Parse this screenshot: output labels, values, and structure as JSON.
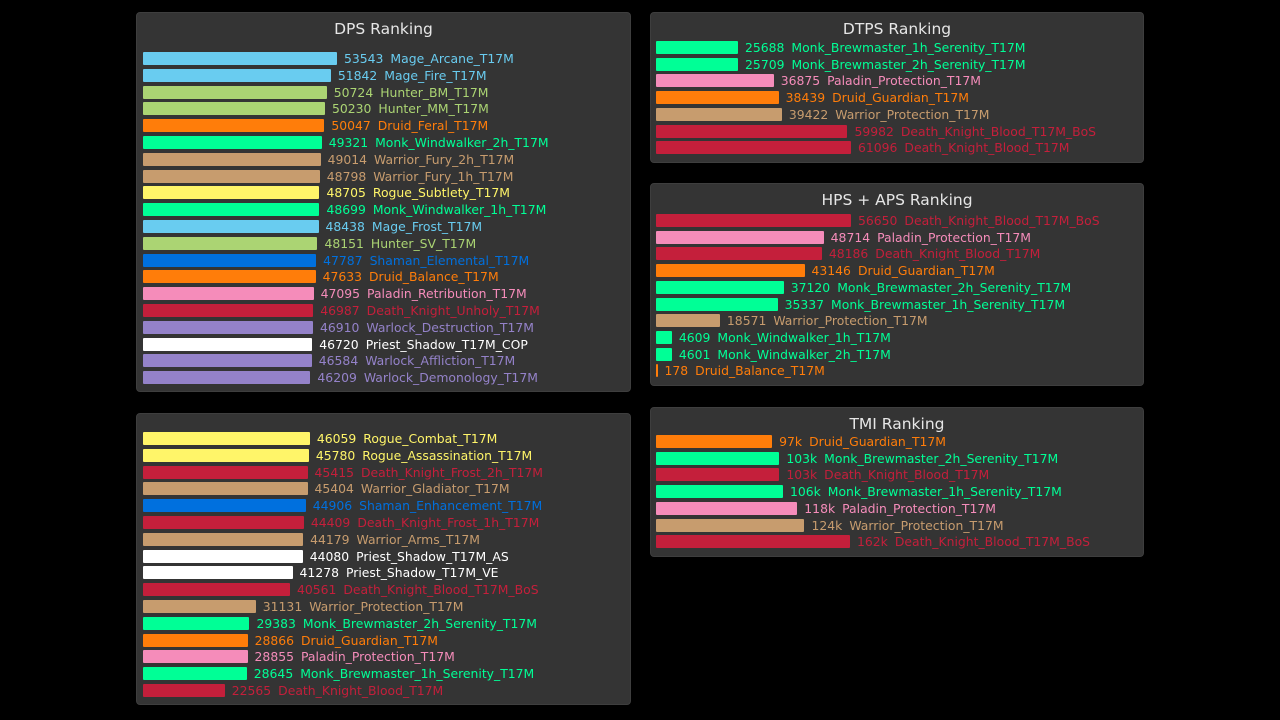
{
  "colors": {
    "Mage": "#69ccf0",
    "Hunter": "#abd473",
    "Druid": "#ff7d0a",
    "Monk": "#00ff96",
    "Warrior": "#c79c6e",
    "Rogue": "#fff569",
    "Shaman": "#0070de",
    "Paladin": "#f58cba",
    "Death Knight": "#c41f3b",
    "Warlock": "#9482c9",
    "Priest": "#ffffff"
  },
  "chart_data": [
    {
      "id": "dps1",
      "type": "bar",
      "orientation": "horizontal",
      "title": "DPS Ranking",
      "max": 53543,
      "items": [
        {
          "value": 53543,
          "label": "53543",
          "name": "Mage_Arcane_T17M",
          "cls": "Mage"
        },
        {
          "value": 51842,
          "label": "51842",
          "name": "Mage_Fire_T17M",
          "cls": "Mage"
        },
        {
          "value": 50724,
          "label": "50724",
          "name": "Hunter_BM_T17M",
          "cls": "Hunter"
        },
        {
          "value": 50230,
          "label": "50230",
          "name": "Hunter_MM_T17M",
          "cls": "Hunter"
        },
        {
          "value": 50047,
          "label": "50047",
          "name": "Druid_Feral_T17M",
          "cls": "Druid"
        },
        {
          "value": 49321,
          "label": "49321",
          "name": "Monk_Windwalker_2h_T17M",
          "cls": "Monk"
        },
        {
          "value": 49014,
          "label": "49014",
          "name": "Warrior_Fury_2h_T17M",
          "cls": "Warrior"
        },
        {
          "value": 48798,
          "label": "48798",
          "name": "Warrior_Fury_1h_T17M",
          "cls": "Warrior"
        },
        {
          "value": 48705,
          "label": "48705",
          "name": "Rogue_Subtlety_T17M",
          "cls": "Rogue"
        },
        {
          "value": 48699,
          "label": "48699",
          "name": "Monk_Windwalker_1h_T17M",
          "cls": "Monk"
        },
        {
          "value": 48438,
          "label": "48438",
          "name": "Mage_Frost_T17M",
          "cls": "Mage"
        },
        {
          "value": 48151,
          "label": "48151",
          "name": "Hunter_SV_T17M",
          "cls": "Hunter"
        },
        {
          "value": 47787,
          "label": "47787",
          "name": "Shaman_Elemental_T17M",
          "cls": "Shaman"
        },
        {
          "value": 47633,
          "label": "47633",
          "name": "Druid_Balance_T17M",
          "cls": "Druid"
        },
        {
          "value": 47095,
          "label": "47095",
          "name": "Paladin_Retribution_T17M",
          "cls": "Paladin"
        },
        {
          "value": 46987,
          "label": "46987",
          "name": "Death_Knight_Unholy_T17M",
          "cls": "Death Knight"
        },
        {
          "value": 46910,
          "label": "46910",
          "name": "Warlock_Destruction_T17M",
          "cls": "Warlock"
        },
        {
          "value": 46720,
          "label": "46720",
          "name": "Priest_Shadow_T17M_COP",
          "cls": "Priest"
        },
        {
          "value": 46584,
          "label": "46584",
          "name": "Warlock_Affliction_T17M",
          "cls": "Warlock"
        },
        {
          "value": 46209,
          "label": "46209",
          "name": "Warlock_Demonology_T17M",
          "cls": "Warlock"
        }
      ]
    },
    {
      "id": "dps2",
      "type": "bar",
      "orientation": "horizontal",
      "title": "",
      "max": 53543,
      "items": [
        {
          "value": 46059,
          "label": "46059",
          "name": "Rogue_Combat_T17M",
          "cls": "Rogue"
        },
        {
          "value": 45780,
          "label": "45780",
          "name": "Rogue_Assassination_T17M",
          "cls": "Rogue"
        },
        {
          "value": 45415,
          "label": "45415",
          "name": "Death_Knight_Frost_2h_T17M",
          "cls": "Death Knight"
        },
        {
          "value": 45404,
          "label": "45404",
          "name": "Warrior_Gladiator_T17M",
          "cls": "Warrior"
        },
        {
          "value": 44906,
          "label": "44906",
          "name": "Shaman_Enhancement_T17M",
          "cls": "Shaman"
        },
        {
          "value": 44409,
          "label": "44409",
          "name": "Death_Knight_Frost_1h_T17M",
          "cls": "Death Knight"
        },
        {
          "value": 44179,
          "label": "44179",
          "name": "Warrior_Arms_T17M",
          "cls": "Warrior"
        },
        {
          "value": 44080,
          "label": "44080",
          "name": "Priest_Shadow_T17M_AS",
          "cls": "Priest"
        },
        {
          "value": 41278,
          "label": "41278",
          "name": "Priest_Shadow_T17M_VE",
          "cls": "Priest"
        },
        {
          "value": 40561,
          "label": "40561",
          "name": "Death_Knight_Blood_T17M_BoS",
          "cls": "Death Knight"
        },
        {
          "value": 31131,
          "label": "31131",
          "name": "Warrior_Protection_T17M",
          "cls": "Warrior"
        },
        {
          "value": 29383,
          "label": "29383",
          "name": "Monk_Brewmaster_2h_Serenity_T17M",
          "cls": "Monk"
        },
        {
          "value": 28866,
          "label": "28866",
          "name": "Druid_Guardian_T17M",
          "cls": "Druid"
        },
        {
          "value": 28855,
          "label": "28855",
          "name": "Paladin_Protection_T17M",
          "cls": "Paladin"
        },
        {
          "value": 28645,
          "label": "28645",
          "name": "Monk_Brewmaster_1h_Serenity_T17M",
          "cls": "Monk"
        },
        {
          "value": 22565,
          "label": "22565",
          "name": "Death_Knight_Blood_T17M",
          "cls": "Death Knight"
        }
      ]
    },
    {
      "id": "dtps",
      "type": "bar",
      "orientation": "horizontal",
      "title": "DTPS Ranking",
      "max": 61096,
      "items": [
        {
          "value": 25688,
          "label": "25688",
          "name": "Monk_Brewmaster_1h_Serenity_T17M",
          "cls": "Monk"
        },
        {
          "value": 25709,
          "label": "25709",
          "name": "Monk_Brewmaster_2h_Serenity_T17M",
          "cls": "Monk"
        },
        {
          "value": 36875,
          "label": "36875",
          "name": "Paladin_Protection_T17M",
          "cls": "Paladin"
        },
        {
          "value": 38439,
          "label": "38439",
          "name": "Druid_Guardian_T17M",
          "cls": "Druid"
        },
        {
          "value": 39422,
          "label": "39422",
          "name": "Warrior_Protection_T17M",
          "cls": "Warrior"
        },
        {
          "value": 59982,
          "label": "59982",
          "name": "Death_Knight_Blood_T17M_BoS",
          "cls": "Death Knight"
        },
        {
          "value": 61096,
          "label": "61096",
          "name": "Death_Knight_Blood_T17M",
          "cls": "Death Knight"
        }
      ]
    },
    {
      "id": "hps",
      "type": "bar",
      "orientation": "horizontal",
      "title": "HPS + APS Ranking",
      "max": 56650,
      "items": [
        {
          "value": 56650,
          "label": "56650",
          "name": "Death_Knight_Blood_T17M_BoS",
          "cls": "Death Knight"
        },
        {
          "value": 48714,
          "label": "48714",
          "name": "Paladin_Protection_T17M",
          "cls": "Paladin"
        },
        {
          "value": 48186,
          "label": "48186",
          "name": "Death_Knight_Blood_T17M",
          "cls": "Death Knight"
        },
        {
          "value": 43146,
          "label": "43146",
          "name": "Druid_Guardian_T17M",
          "cls": "Druid"
        },
        {
          "value": 37120,
          "label": "37120",
          "name": "Monk_Brewmaster_2h_Serenity_T17M",
          "cls": "Monk"
        },
        {
          "value": 35337,
          "label": "35337",
          "name": "Monk_Brewmaster_1h_Serenity_T17M",
          "cls": "Monk"
        },
        {
          "value": 18571,
          "label": "18571",
          "name": "Warrior_Protection_T17M",
          "cls": "Warrior"
        },
        {
          "value": 4609,
          "label": "4609",
          "name": "Monk_Windwalker_1h_T17M",
          "cls": "Monk"
        },
        {
          "value": 4601,
          "label": "4601",
          "name": "Monk_Windwalker_2h_T17M",
          "cls": "Monk"
        },
        {
          "value": 178,
          "label": "178",
          "name": "Druid_Balance_T17M",
          "cls": "Druid"
        }
      ]
    },
    {
      "id": "tmi",
      "type": "bar",
      "orientation": "horizontal",
      "title": "TMI Ranking",
      "max": 162000,
      "items": [
        {
          "value": 97000,
          "label": "97k",
          "name": "Druid_Guardian_T17M",
          "cls": "Druid"
        },
        {
          "value": 103000,
          "label": "103k",
          "name": "Monk_Brewmaster_2h_Serenity_T17M",
          "cls": "Monk"
        },
        {
          "value": 103000,
          "label": "103k",
          "name": "Death_Knight_Blood_T17M",
          "cls": "Death Knight"
        },
        {
          "value": 106000,
          "label": "106k",
          "name": "Monk_Brewmaster_1h_Serenity_T17M",
          "cls": "Monk"
        },
        {
          "value": 118000,
          "label": "118k",
          "name": "Paladin_Protection_T17M",
          "cls": "Paladin"
        },
        {
          "value": 124000,
          "label": "124k",
          "name": "Warrior_Protection_T17M",
          "cls": "Warrior"
        },
        {
          "value": 162000,
          "label": "162k",
          "name": "Death_Knight_Blood_T17M_BoS",
          "cls": "Death Knight"
        }
      ]
    }
  ]
}
